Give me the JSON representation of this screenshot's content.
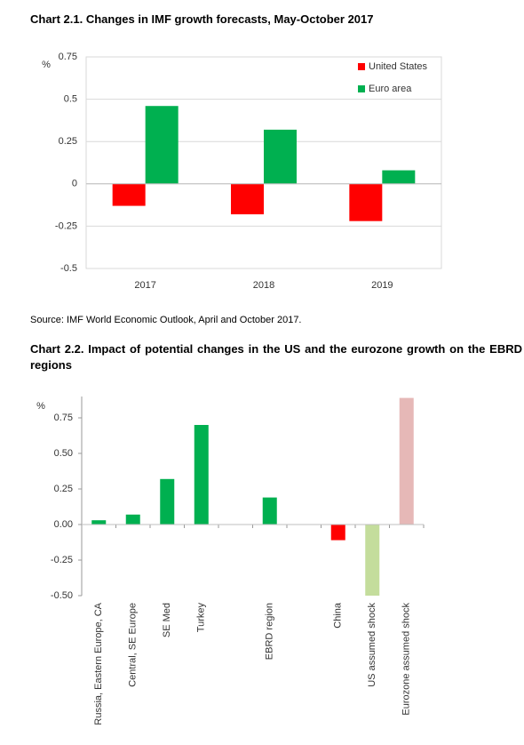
{
  "chart_data": [
    {
      "type": "bar",
      "title": "Chart 2.1. Changes in IMF growth forecasts, May-October 2017",
      "ylabel": "%",
      "categories": [
        "2017",
        "2018",
        "2019"
      ],
      "series": [
        {
          "name": "United States",
          "color": "#ff0000",
          "values": [
            -0.13,
            -0.18,
            -0.22
          ]
        },
        {
          "name": "Euro area",
          "color": "#00b050",
          "values": [
            0.46,
            0.32,
            0.08
          ]
        }
      ],
      "ylim": [
        -0.5,
        0.75
      ],
      "yticks": [
        0.75,
        0.5,
        0.25,
        0,
        -0.25,
        -0.5
      ],
      "grid": true,
      "legend": "top-right",
      "source": "Source: IMF World Economic Outlook, April and October 2017."
    },
    {
      "type": "bar",
      "title": "Chart 2.2. Impact of potential changes in the US and the eurozone growth on the EBRD regions",
      "ylabel": "%",
      "categories": [
        "Russia, Eastern Europe, CA",
        "Central, SE Europe",
        "SE Med",
        "Turkey",
        null,
        "EBRD region",
        null,
        "China",
        "US assumed shock",
        "Eurozone assumed shock"
      ],
      "values": [
        0.03,
        0.07,
        0.32,
        0.7,
        null,
        0.19,
        null,
        -0.11,
        -0.5,
        0.89
      ],
      "colors": [
        "#00b050",
        "#00b050",
        "#00b050",
        "#00b050",
        null,
        "#00b050",
        null,
        "#ff0000",
        "#c4dd9c",
        "#e6b8b7"
      ],
      "ylim": [
        -0.5,
        0.9
      ],
      "yticks": [
        {
          "value": 0.75,
          "label": "0.75"
        },
        {
          "value": 0.5,
          "label": "0.50"
        },
        {
          "value": 0.25,
          "label": "0.25"
        },
        {
          "value": 0,
          "label": "0.00"
        },
        {
          "value": -0.25,
          "label": "-0.25"
        },
        {
          "value": -0.5,
          "label": "-0.50"
        }
      ],
      "grid": false
    }
  ]
}
